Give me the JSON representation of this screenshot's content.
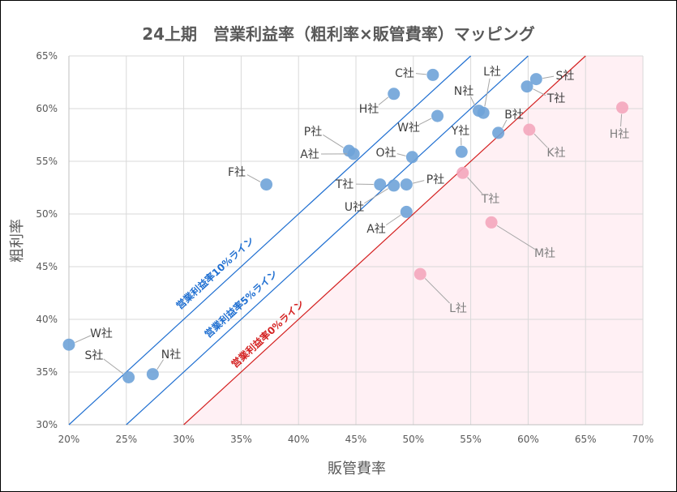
{
  "chart_data": {
    "type": "scatter",
    "title": "24上期　営業利益率（粗利率×販管費率）マッピング",
    "xlabel": "販管費率",
    "ylabel": "粗利率",
    "xlim": [
      20,
      70
    ],
    "ylim": [
      30,
      65
    ],
    "xticks": [
      "20%",
      "25%",
      "30%",
      "35%",
      "40%",
      "45%",
      "50%",
      "55%",
      "60%",
      "65%",
      "70%"
    ],
    "yticks": [
      "30%",
      "35%",
      "40%",
      "45%",
      "50%",
      "55%",
      "60%",
      "65%"
    ],
    "grid": true,
    "colors": {
      "profit": "#6fa3d8",
      "loss": "#f4a6bd",
      "loss_region": "#fff0f4",
      "line_positive": "#1f6fd1",
      "line_zero": "#d42020"
    },
    "reference_lines": [
      {
        "label": "営業利益率10%ライン",
        "margin": 10,
        "color": "#1f6fd1"
      },
      {
        "label": "営業利益率5%ライン",
        "margin": 5,
        "color": "#1f6fd1"
      },
      {
        "label": "営業利益率0%ライン",
        "margin": 0,
        "color": "#d42020"
      }
    ],
    "series": [
      {
        "group": "profit",
        "points": [
          {
            "label": "C社",
            "x": 51.7,
            "y": 63.2
          },
          {
            "label": "H社",
            "x": 48.3,
            "y": 61.4
          },
          {
            "label": "L社",
            "x": 56.1,
            "y": 59.6
          },
          {
            "label": "N社",
            "x": 55.7,
            "y": 59.8
          },
          {
            "label": "S社",
            "x": 60.7,
            "y": 62.8
          },
          {
            "label": "T社",
            "x": 59.9,
            "y": 62.1
          },
          {
            "label": "W社",
            "x": 52.1,
            "y": 59.3
          },
          {
            "label": "B社",
            "x": 57.4,
            "y": 57.7
          },
          {
            "label": "Y社",
            "x": 54.2,
            "y": 55.9
          },
          {
            "label": "P社",
            "x": 44.4,
            "y": 56.0
          },
          {
            "label": "A社",
            "x": 44.8,
            "y": 55.7
          },
          {
            "label": "O社",
            "x": 49.9,
            "y": 55.4
          },
          {
            "label": "F社",
            "x": 37.2,
            "y": 52.8
          },
          {
            "label": "T社",
            "x": 47.1,
            "y": 52.8
          },
          {
            "label": "U社",
            "x": 48.3,
            "y": 52.7
          },
          {
            "label": "P社",
            "x": 49.4,
            "y": 52.8
          },
          {
            "label": "A社",
            "x": 49.4,
            "y": 50.2
          },
          {
            "label": "W社",
            "x": 20.0,
            "y": 37.6
          },
          {
            "label": "S社",
            "x": 25.2,
            "y": 34.5
          },
          {
            "label": "N社",
            "x": 27.3,
            "y": 34.8
          }
        ]
      },
      {
        "group": "loss",
        "points": [
          {
            "label": "T社",
            "x": 54.3,
            "y": 53.9
          },
          {
            "label": "K社",
            "x": 60.1,
            "y": 58.0
          },
          {
            "label": "H社",
            "x": 68.2,
            "y": 60.1
          },
          {
            "label": "M社",
            "x": 56.8,
            "y": 49.2
          },
          {
            "label": "L社",
            "x": 50.6,
            "y": 44.3
          }
        ]
      }
    ]
  }
}
